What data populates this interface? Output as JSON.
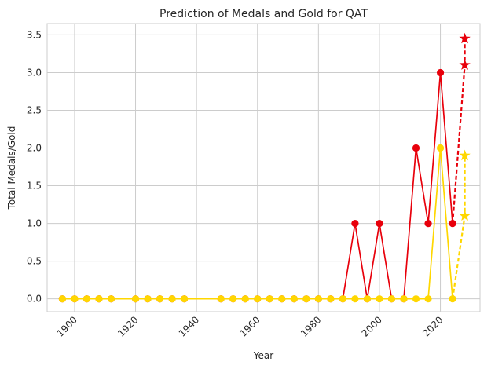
{
  "chart_data": {
    "type": "line",
    "title": "Prediction of Medals and Gold for QAT",
    "xlabel": "Year",
    "ylabel": "Total Medals/Gold",
    "xlim": [
      1891,
      2033
    ],
    "ylim": [
      -0.17,
      3.65
    ],
    "grid": true,
    "x_ticks": [
      1900,
      1920,
      1940,
      1960,
      1980,
      2000,
      2020
    ],
    "y_ticks": [
      0.0,
      0.5,
      1.0,
      1.5,
      2.0,
      2.5,
      3.0,
      3.5
    ],
    "x_tick_labels": [
      "1900",
      "1920",
      "1940",
      "1960",
      "1980",
      "2000",
      "2020"
    ],
    "y_tick_labels": [
      "0.0",
      "0.5",
      "1.0",
      "1.5",
      "2.0",
      "2.5",
      "3.0",
      "3.5"
    ],
    "x": [
      1896,
      1900,
      1904,
      1908,
      1912,
      1920,
      1924,
      1928,
      1932,
      1936,
      1948,
      1952,
      1956,
      1960,
      1964,
      1968,
      1972,
      1976,
      1980,
      1984,
      1988,
      1992,
      1996,
      2000,
      2004,
      2008,
      2012,
      2016,
      2020,
      2024
    ],
    "series": [
      {
        "key": "medals",
        "color": "#e8000b",
        "values": [
          0,
          0,
          0,
          0,
          0,
          0,
          0,
          0,
          0,
          0,
          0,
          0,
          0,
          0,
          0,
          0,
          0,
          0,
          0,
          0,
          0,
          1,
          0,
          1,
          0,
          0,
          2,
          1,
          3,
          1
        ]
      },
      {
        "key": "gold",
        "color": "#ffd700",
        "values": [
          0,
          0,
          0,
          0,
          0,
          0,
          0,
          0,
          0,
          0,
          0,
          0,
          0,
          0,
          0,
          0,
          0,
          0,
          0,
          0,
          0,
          0,
          0,
          0,
          0,
          0,
          0,
          0,
          2,
          0
        ]
      }
    ],
    "predictions": [
      {
        "key": "medals",
        "color": "#e8000b",
        "from": [
          2024,
          1
        ],
        "points": [
          [
            2028,
            3.1
          ],
          [
            2028,
            3.45
          ]
        ]
      },
      {
        "key": "gold",
        "color": "#ffd700",
        "from": [
          2024,
          0
        ],
        "points": [
          [
            2028,
            1.1
          ],
          [
            2028,
            1.9
          ]
        ]
      }
    ]
  }
}
